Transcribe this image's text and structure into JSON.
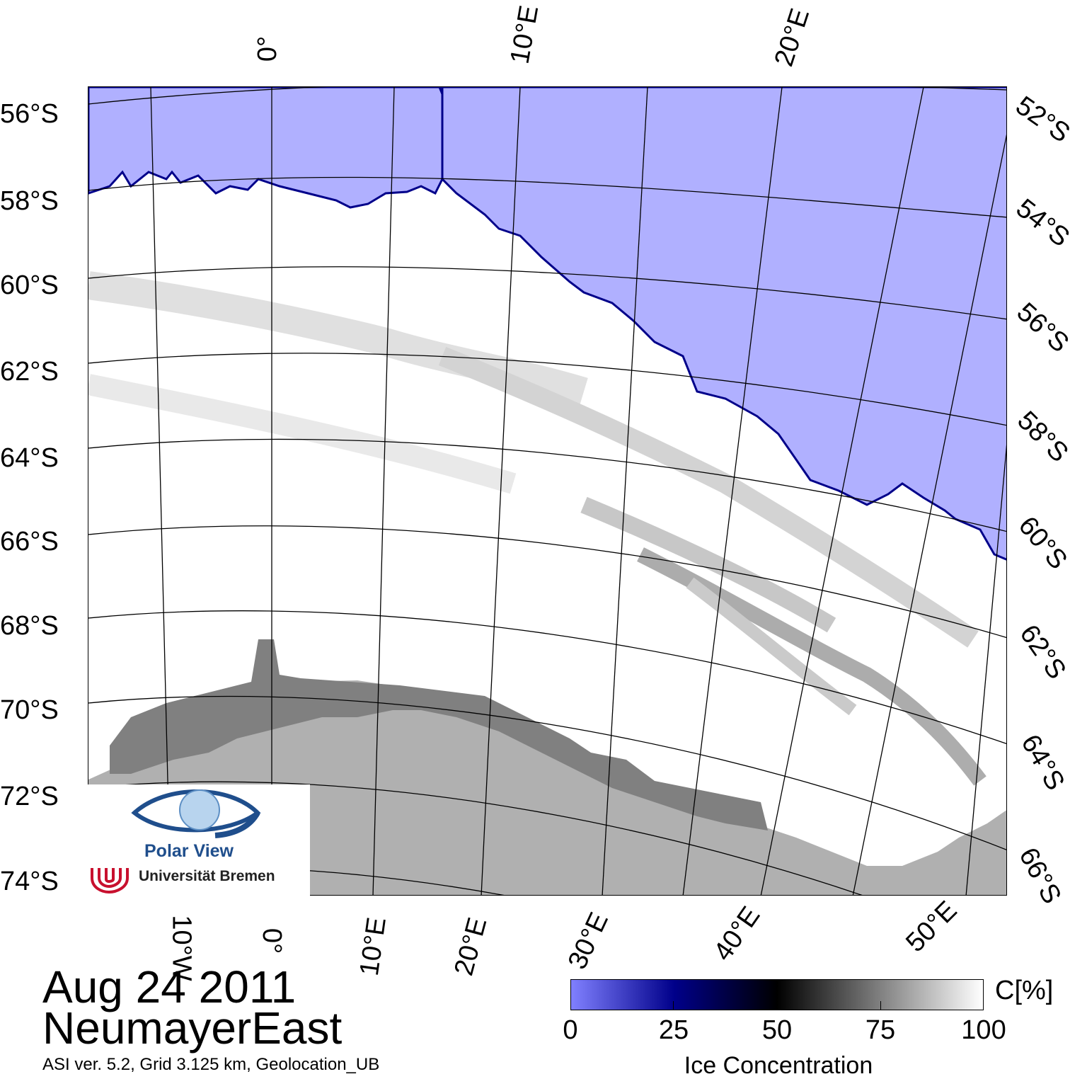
{
  "map": {
    "colors": {
      "open_water": "#b0b0ff",
      "ice_full": "#ffffff",
      "land": "#b0b0b0",
      "ice_shelf": "#808080",
      "ice_edge": "#00008a"
    },
    "lat_labels_left": [
      "56°S",
      "58°S",
      "60°S",
      "62°S",
      "64°S",
      "66°S",
      "68°S",
      "70°S",
      "72°S",
      "74°S"
    ],
    "lat_labels_right": [
      "52°S",
      "54°S",
      "56°S",
      "58°S",
      "60°S",
      "62°S",
      "64°S",
      "66°S"
    ],
    "lon_labels_top": [
      "0°",
      "10°E",
      "20°E"
    ],
    "lon_labels_bottom": [
      "10°W",
      "0°",
      "10°E",
      "20°E",
      "30°E",
      "40°E",
      "50°E"
    ]
  },
  "logo": {
    "name": "Polar View",
    "institution": "Universität Bremen"
  },
  "footer": {
    "date": "Aug 24 2011",
    "region": "NeumayerEast",
    "info": "ASI ver. 5.2,  Grid 3.125 km, Geolocation_UB"
  },
  "colorbar": {
    "ticks": [
      "0",
      "25",
      "50",
      "75",
      "100"
    ],
    "unit": "C[%]",
    "label": "Ice Concentration",
    "gradient": [
      "#8080ff",
      "#00008a",
      "#000000",
      "#808080",
      "#ffffff"
    ]
  }
}
